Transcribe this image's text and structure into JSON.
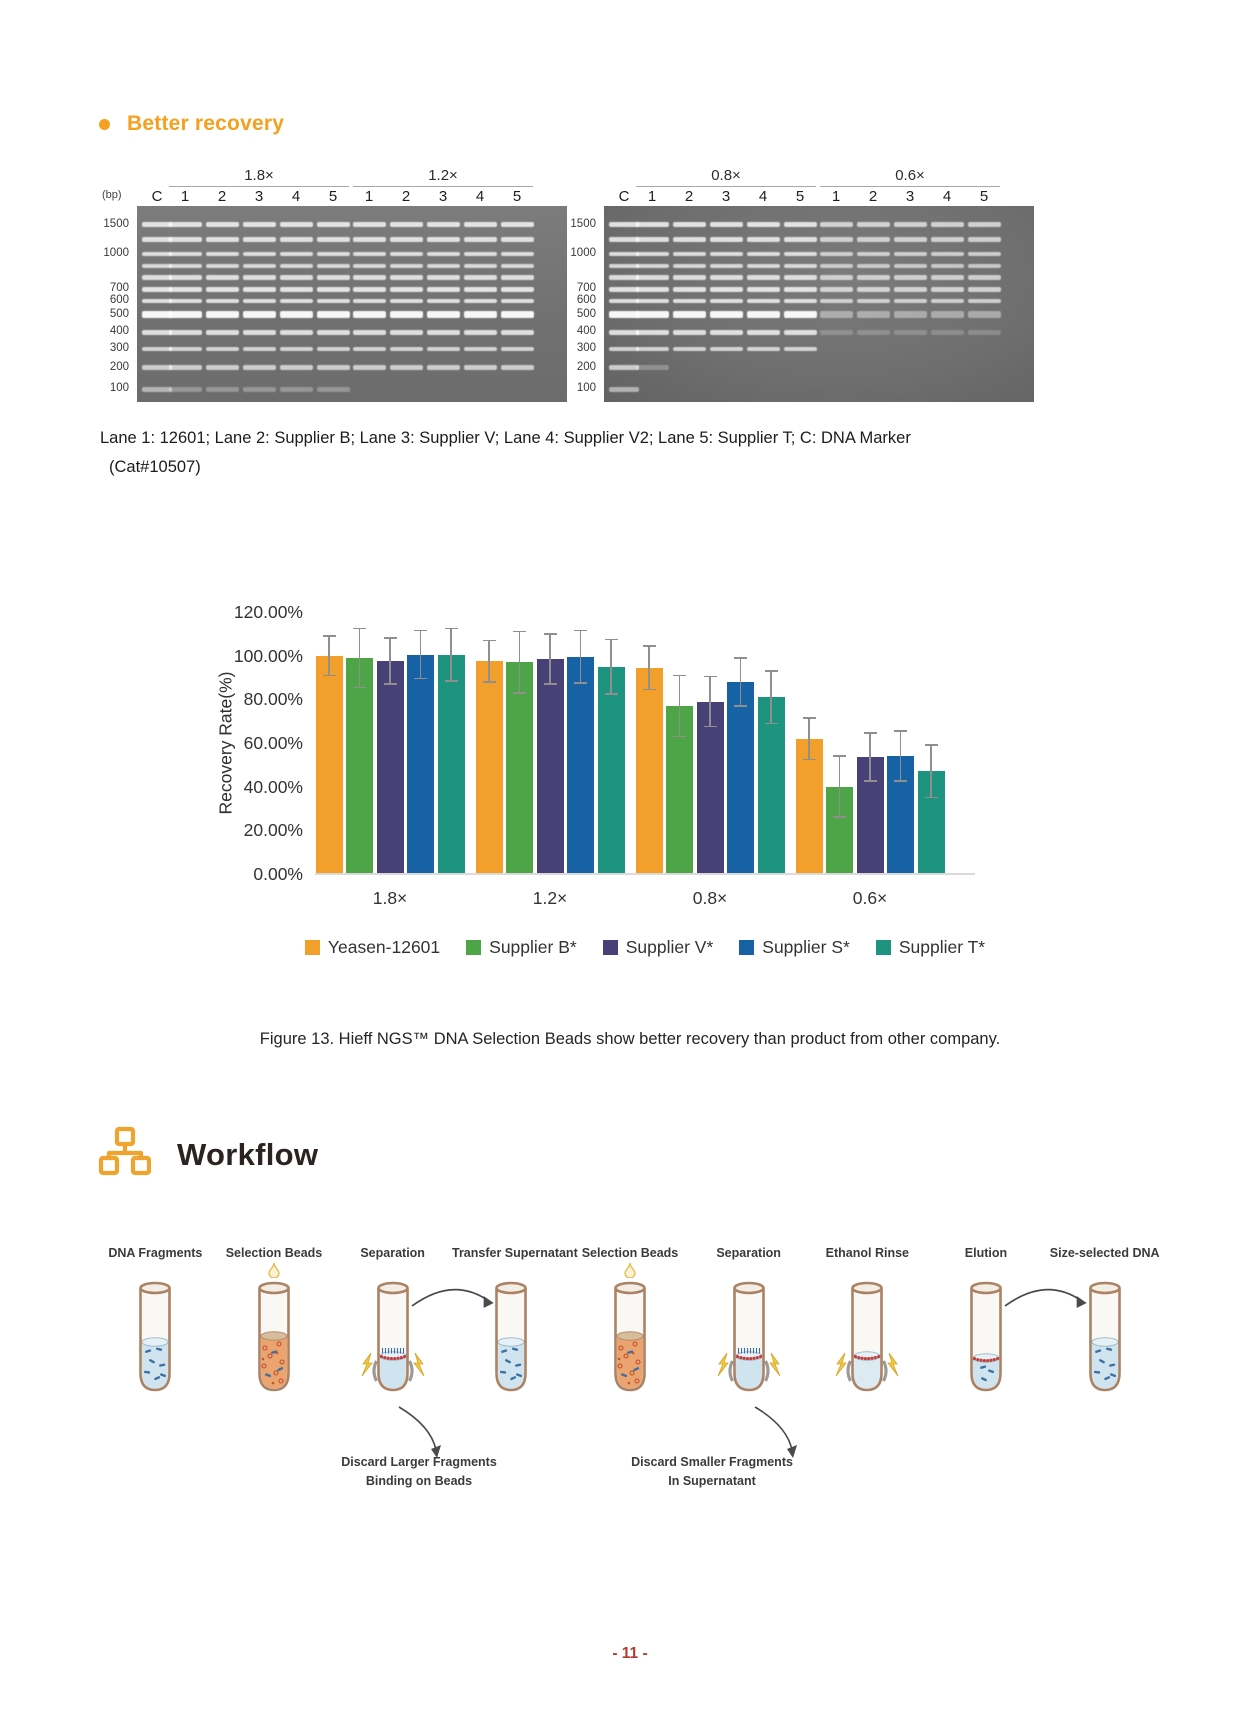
{
  "page": {
    "section_title": "Better recovery",
    "figure_caption": "Figure 13. Hieff NGS™ DNA Selection Beads show better recovery than product from other company.",
    "workflow_title": "Workflow",
    "page_number": "- 11 -",
    "accent_color": "#F5A01E",
    "page_number_color": "#B23A2F"
  },
  "gel": {
    "bp_unit_label": "(bp)",
    "marker_lane_label": "C",
    "lane_numbers": [
      "1",
      "2",
      "3",
      "4",
      "5"
    ],
    "panels": [
      {
        "groups": [
          "1.8×",
          "1.2×"
        ],
        "bp_labels": [
          "1500",
          "1000",
          "700",
          "600",
          "500",
          "400",
          "300",
          "200",
          "100"
        ]
      },
      {
        "groups": [
          "0.8×",
          "0.6×"
        ],
        "bp_labels": [
          "1500",
          "1000",
          "700",
          "600",
          "500",
          "400",
          "300",
          "200",
          "100"
        ]
      }
    ],
    "caption_line1": "Lane 1:  12601;  Lane 2:  Supplier B;  Lane 3:  Supplier V;  Lane 4:  Supplier V2;  Lane 5:  Supplier T;  C:  DNA Marker",
    "caption_line2": "(Cat#10507)"
  },
  "chart_data": {
    "type": "bar",
    "title": "",
    "xlabel": "",
    "ylabel": "Recovery Rate(%)",
    "ylim": [
      0,
      120
    ],
    "yticks": [
      "0.00%",
      "20.00%",
      "40.00%",
      "60.00%",
      "80.00%",
      "100.00%",
      "120.00%"
    ],
    "categories": [
      "1.8×",
      "1.2×",
      "0.8×",
      "0.6×"
    ],
    "series": [
      {
        "name": "Yeasen-12601",
        "color": "#F2A02B",
        "values": [
          100,
          97.5,
          94.5,
          62
        ],
        "errors": [
          9,
          9.5,
          10,
          9.5
        ]
      },
      {
        "name": "Supplier B*",
        "color": "#4DA547",
        "values": [
          99,
          97,
          77,
          40
        ],
        "errors": [
          13.5,
          14,
          14,
          14
        ]
      },
      {
        "name": "Supplier V*",
        "color": "#484178",
        "values": [
          97.5,
          98.5,
          79,
          53.5
        ],
        "errors": [
          10.5,
          11.5,
          11.5,
          11
        ]
      },
      {
        "name": "Supplier S*",
        "color": "#1761A5",
        "values": [
          100.5,
          99.5,
          88,
          54
        ],
        "errors": [
          11,
          12,
          11,
          11.5
        ]
      },
      {
        "name": "Supplier T*",
        "color": "#1E9480",
        "values": [
          100.5,
          95,
          81,
          47
        ],
        "errors": [
          12,
          12.5,
          12,
          12
        ]
      }
    ],
    "error_bars": true,
    "legend_position": "bottom",
    "grid": false
  },
  "workflow": {
    "steps": [
      {
        "label": "DNA Fragments",
        "tube": "sample-blue"
      },
      {
        "label": "Selection Beads",
        "tube": "beads-orange",
        "drop": true
      },
      {
        "label": "Separation",
        "tube": "magnet-separated",
        "arrow_to_next": true,
        "discard_arrow": true
      },
      {
        "label": "Transfer Supernatant",
        "tube": "sample-blue"
      },
      {
        "label": "Selection Beads",
        "tube": "beads-orange",
        "drop": true
      },
      {
        "label": "Separation",
        "tube": "magnet-separated",
        "discard_arrow": true
      },
      {
        "label": "Ethanol Rinse",
        "tube": "magnet-rinse"
      },
      {
        "label": "Elution",
        "tube": "elution-beads",
        "arrow_to_next": true
      },
      {
        "label": "Size-selected DNA",
        "tube": "sample-blue"
      }
    ],
    "notes": [
      {
        "lines": [
          "Discard Larger Fragments",
          "Binding on Beads"
        ]
      },
      {
        "lines": [
          "Discard Smaller Fragments",
          "In Supernatant"
        ]
      }
    ]
  }
}
